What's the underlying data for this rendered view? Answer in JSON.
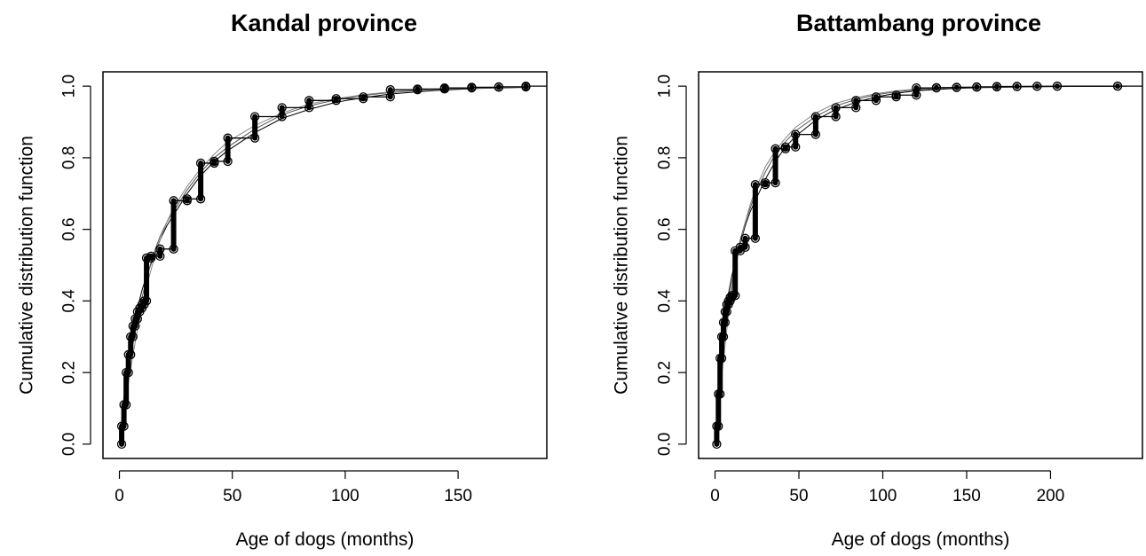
{
  "chart_data": [
    {
      "type": "line",
      "title": "Kandal province",
      "xlabel": "Age of dogs (months)",
      "ylabel": "Cumulative distribution function",
      "xlim": [
        0,
        182
      ],
      "ylim": [
        0,
        1
      ],
      "xticks": [
        0,
        50,
        100,
        150
      ],
      "yticks": [
        0.0,
        0.2,
        0.4,
        0.6,
        0.8,
        1.0
      ],
      "grid": false,
      "legend": "none",
      "empirical_steps": [
        {
          "x": 1,
          "lo": 0.0,
          "hi": 0.05
        },
        {
          "x": 2,
          "lo": 0.05,
          "hi": 0.11
        },
        {
          "x": 3,
          "lo": 0.11,
          "hi": 0.2
        },
        {
          "x": 4,
          "lo": 0.2,
          "hi": 0.25
        },
        {
          "x": 5,
          "lo": 0.25,
          "hi": 0.3
        },
        {
          "x": 6,
          "lo": 0.3,
          "hi": 0.33
        },
        {
          "x": 7,
          "lo": 0.33,
          "hi": 0.35
        },
        {
          "x": 8,
          "lo": 0.35,
          "hi": 0.37
        },
        {
          "x": 9,
          "lo": 0.37,
          "hi": 0.38
        },
        {
          "x": 10,
          "lo": 0.38,
          "hi": 0.39
        },
        {
          "x": 11,
          "lo": 0.39,
          "hi": 0.4
        },
        {
          "x": 12,
          "lo": 0.4,
          "hi": 0.52
        },
        {
          "x": 14,
          "lo": 0.52,
          "hi": 0.525
        },
        {
          "x": 18,
          "lo": 0.525,
          "hi": 0.545
        },
        {
          "x": 24,
          "lo": 0.545,
          "hi": 0.68
        },
        {
          "x": 30,
          "lo": 0.68,
          "hi": 0.685
        },
        {
          "x": 36,
          "lo": 0.685,
          "hi": 0.785
        },
        {
          "x": 42,
          "lo": 0.785,
          "hi": 0.79
        },
        {
          "x": 48,
          "lo": 0.79,
          "hi": 0.855
        },
        {
          "x": 60,
          "lo": 0.855,
          "hi": 0.915
        },
        {
          "x": 72,
          "lo": 0.915,
          "hi": 0.94
        },
        {
          "x": 84,
          "lo": 0.94,
          "hi": 0.96
        },
        {
          "x": 96,
          "lo": 0.96,
          "hi": 0.965
        },
        {
          "x": 108,
          "lo": 0.965,
          "hi": 0.97
        },
        {
          "x": 120,
          "lo": 0.97,
          "hi": 0.99
        },
        {
          "x": 132,
          "lo": 0.99,
          "hi": 0.992
        },
        {
          "x": 144,
          "lo": 0.992,
          "hi": 0.995
        },
        {
          "x": 156,
          "lo": 0.995,
          "hi": 0.997
        },
        {
          "x": 168,
          "lo": 0.997,
          "hi": 0.998
        },
        {
          "x": 180,
          "lo": 0.998,
          "hi": 1.0
        }
      ],
      "fitted_curves": [
        {
          "x": [
            0,
            2,
            4,
            6,
            8,
            10,
            12,
            15,
            18,
            21,
            24,
            30,
            36,
            42,
            48,
            60,
            72,
            84,
            96,
            108,
            120,
            140,
            160,
            182
          ],
          "y": [
            0,
            0.13,
            0.24,
            0.32,
            0.38,
            0.43,
            0.47,
            0.52,
            0.57,
            0.61,
            0.64,
            0.7,
            0.75,
            0.79,
            0.82,
            0.87,
            0.91,
            0.935,
            0.955,
            0.968,
            0.978,
            0.988,
            0.994,
            0.997
          ]
        },
        {
          "x": [
            0,
            2,
            4,
            6,
            8,
            10,
            12,
            15,
            18,
            21,
            24,
            30,
            36,
            42,
            48,
            60,
            72,
            84,
            96,
            108,
            120,
            140,
            160,
            182
          ],
          "y": [
            0,
            0.1,
            0.2,
            0.28,
            0.35,
            0.41,
            0.46,
            0.53,
            0.58,
            0.62,
            0.65,
            0.71,
            0.76,
            0.8,
            0.83,
            0.88,
            0.92,
            0.945,
            0.962,
            0.974,
            0.982,
            0.991,
            0.995,
            0.998
          ]
        },
        {
          "x": [
            0,
            2,
            4,
            6,
            8,
            10,
            12,
            15,
            18,
            21,
            24,
            30,
            36,
            42,
            48,
            60,
            72,
            84,
            96,
            108,
            120,
            140,
            160,
            182
          ],
          "y": [
            0,
            0.08,
            0.17,
            0.25,
            0.32,
            0.38,
            0.44,
            0.51,
            0.57,
            0.62,
            0.66,
            0.72,
            0.77,
            0.81,
            0.845,
            0.89,
            0.925,
            0.95,
            0.965,
            0.976,
            0.984,
            0.992,
            0.996,
            0.998
          ]
        }
      ]
    },
    {
      "type": "line",
      "title": "Battambang province",
      "xlabel": "Age of dogs (months)",
      "ylabel": "Cumulative distribution function",
      "xlim": [
        0,
        245
      ],
      "ylim": [
        0,
        1
      ],
      "xticks": [
        0,
        50,
        100,
        150,
        200
      ],
      "yticks": [
        0.0,
        0.2,
        0.4,
        0.6,
        0.8,
        1.0
      ],
      "grid": false,
      "legend": "none",
      "empirical_steps": [
        {
          "x": 1,
          "lo": 0.0,
          "hi": 0.05
        },
        {
          "x": 2,
          "lo": 0.05,
          "hi": 0.14
        },
        {
          "x": 3,
          "lo": 0.14,
          "hi": 0.24
        },
        {
          "x": 4,
          "lo": 0.24,
          "hi": 0.3
        },
        {
          "x": 5,
          "lo": 0.3,
          "hi": 0.34
        },
        {
          "x": 6,
          "lo": 0.34,
          "hi": 0.37
        },
        {
          "x": 7,
          "lo": 0.37,
          "hi": 0.39
        },
        {
          "x": 8,
          "lo": 0.39,
          "hi": 0.4
        },
        {
          "x": 9,
          "lo": 0.4,
          "hi": 0.41
        },
        {
          "x": 10,
          "lo": 0.41,
          "hi": 0.415
        },
        {
          "x": 12,
          "lo": 0.415,
          "hi": 0.54
        },
        {
          "x": 15,
          "lo": 0.54,
          "hi": 0.55
        },
        {
          "x": 18,
          "lo": 0.55,
          "hi": 0.575
        },
        {
          "x": 24,
          "lo": 0.575,
          "hi": 0.725
        },
        {
          "x": 30,
          "lo": 0.725,
          "hi": 0.73
        },
        {
          "x": 36,
          "lo": 0.73,
          "hi": 0.825
        },
        {
          "x": 42,
          "lo": 0.825,
          "hi": 0.83
        },
        {
          "x": 48,
          "lo": 0.83,
          "hi": 0.865
        },
        {
          "x": 60,
          "lo": 0.865,
          "hi": 0.915
        },
        {
          "x": 72,
          "lo": 0.915,
          "hi": 0.94
        },
        {
          "x": 84,
          "lo": 0.94,
          "hi": 0.96
        },
        {
          "x": 96,
          "lo": 0.96,
          "hi": 0.97
        },
        {
          "x": 108,
          "lo": 0.97,
          "hi": 0.975
        },
        {
          "x": 120,
          "lo": 0.975,
          "hi": 0.995
        },
        {
          "x": 132,
          "lo": 0.995,
          "hi": 0.996
        },
        {
          "x": 144,
          "lo": 0.996,
          "hi": 0.997
        },
        {
          "x": 156,
          "lo": 0.997,
          "hi": 0.998
        },
        {
          "x": 168,
          "lo": 0.998,
          "hi": 0.999
        },
        {
          "x": 180,
          "lo": 0.999,
          "hi": 0.9995
        },
        {
          "x": 192,
          "lo": 0.9995,
          "hi": 0.9997
        },
        {
          "x": 204,
          "lo": 0.9997,
          "hi": 0.9999
        },
        {
          "x": 240,
          "lo": 0.9999,
          "hi": 1.0
        }
      ],
      "fitted_curves": [
        {
          "x": [
            0,
            2,
            4,
            6,
            8,
            10,
            12,
            15,
            18,
            21,
            24,
            30,
            36,
            42,
            48,
            60,
            72,
            84,
            96,
            108,
            120,
            140,
            160,
            200,
            245
          ],
          "y": [
            0,
            0.14,
            0.26,
            0.35,
            0.42,
            0.47,
            0.51,
            0.56,
            0.61,
            0.65,
            0.68,
            0.74,
            0.79,
            0.83,
            0.86,
            0.905,
            0.935,
            0.955,
            0.97,
            0.98,
            0.987,
            0.993,
            0.996,
            0.999,
            1.0
          ]
        },
        {
          "x": [
            0,
            2,
            4,
            6,
            8,
            10,
            12,
            15,
            18,
            21,
            24,
            30,
            36,
            42,
            48,
            60,
            72,
            84,
            96,
            108,
            120,
            140,
            160,
            200,
            245
          ],
          "y": [
            0,
            0.11,
            0.22,
            0.31,
            0.39,
            0.45,
            0.5,
            0.57,
            0.62,
            0.66,
            0.7,
            0.76,
            0.81,
            0.845,
            0.875,
            0.915,
            0.945,
            0.963,
            0.976,
            0.984,
            0.99,
            0.995,
            0.997,
            0.999,
            1.0
          ]
        },
        {
          "x": [
            0,
            2,
            4,
            6,
            8,
            10,
            12,
            15,
            18,
            21,
            24,
            30,
            36,
            42,
            48,
            60,
            72,
            84,
            96,
            108,
            120,
            140,
            160,
            200,
            245
          ],
          "y": [
            0,
            0.09,
            0.19,
            0.28,
            0.36,
            0.43,
            0.49,
            0.56,
            0.62,
            0.67,
            0.71,
            0.775,
            0.82,
            0.855,
            0.885,
            0.925,
            0.952,
            0.968,
            0.979,
            0.987,
            0.992,
            0.996,
            0.998,
            1.0,
            1.0
          ]
        }
      ]
    }
  ]
}
